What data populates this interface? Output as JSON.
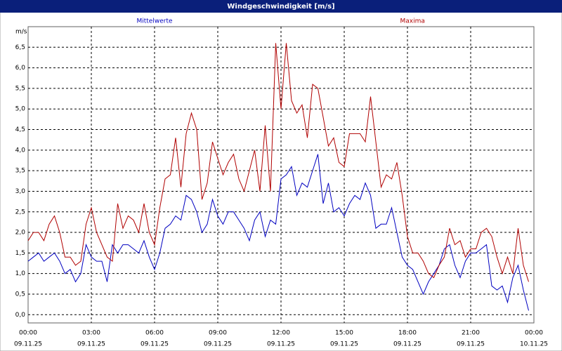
{
  "chart_data": {
    "type": "line",
    "title": "Windgeschwindigkeit [m/s]",
    "y_label": "m/s",
    "x": [
      0,
      0.25,
      0.5,
      0.75,
      1,
      1.25,
      1.5,
      1.75,
      2,
      2.25,
      2.5,
      2.75,
      3,
      3.25,
      3.5,
      3.75,
      4,
      4.25,
      4.5,
      4.75,
      5,
      5.25,
      5.5,
      5.75,
      6,
      6.25,
      6.5,
      6.75,
      7,
      7.25,
      7.5,
      7.75,
      8,
      8.25,
      8.5,
      8.75,
      9,
      9.25,
      9.5,
      9.75,
      10,
      10.25,
      10.5,
      10.75,
      11,
      11.25,
      11.5,
      11.75,
      12,
      12.25,
      12.5,
      12.75,
      13,
      13.25,
      13.5,
      13.75,
      14,
      14.25,
      14.5,
      14.75,
      15,
      15.25,
      15.5,
      15.75,
      16,
      16.25,
      16.5,
      16.75,
      17,
      17.25,
      17.5,
      17.75,
      18,
      18.25,
      18.5,
      18.75,
      19,
      19.25,
      19.5,
      19.75,
      20,
      20.25,
      20.5,
      20.75,
      21,
      21.25,
      21.5,
      21.75,
      22,
      22.25,
      22.5,
      22.75,
      23,
      23.25,
      23.5,
      23.75
    ],
    "series": [
      {
        "name": "Mittelwerte",
        "color": "#0000c0",
        "values": [
          1.3,
          1.4,
          1.5,
          1.3,
          1.4,
          1.5,
          1.3,
          1.0,
          1.1,
          0.8,
          1.0,
          1.7,
          1.4,
          1.3,
          1.3,
          0.8,
          1.7,
          1.5,
          1.7,
          1.7,
          1.6,
          1.5,
          1.8,
          1.4,
          1.1,
          1.5,
          2.1,
          2.2,
          2.4,
          2.3,
          2.9,
          2.8,
          2.5,
          2.0,
          2.2,
          2.8,
          2.4,
          2.2,
          2.5,
          2.5,
          2.3,
          2.1,
          1.8,
          2.3,
          2.5,
          1.9,
          2.3,
          2.2,
          3.3,
          3.4,
          3.6,
          2.9,
          3.2,
          3.1,
          3.5,
          3.9,
          2.7,
          3.2,
          2.5,
          2.6,
          2.4,
          2.7,
          2.9,
          2.8,
          3.2,
          2.9,
          2.1,
          2.2,
          2.2,
          2.6,
          2.0,
          1.4,
          1.2,
          1.1,
          0.8,
          0.5,
          0.8,
          1.0,
          1.2,
          1.6,
          1.7,
          1.2,
          0.9,
          1.3,
          1.5,
          1.5,
          1.6,
          1.7,
          0.7,
          0.6,
          0.7,
          0.3,
          0.9,
          1.2,
          0.6,
          0.1
        ]
      },
      {
        "name": "Maxima",
        "color": "#b00000",
        "values": [
          1.8,
          2.0,
          2.0,
          1.8,
          2.2,
          2.4,
          2.0,
          1.4,
          1.4,
          1.2,
          1.3,
          2.2,
          2.6,
          2.0,
          1.7,
          1.4,
          1.3,
          2.7,
          2.1,
          2.4,
          2.3,
          2.0,
          2.7,
          2.0,
          1.7,
          2.6,
          3.3,
          3.4,
          4.3,
          3.1,
          4.4,
          4.9,
          4.5,
          2.8,
          3.2,
          4.2,
          3.8,
          3.4,
          3.7,
          3.9,
          3.3,
          3.0,
          3.5,
          4.0,
          3.0,
          4.6,
          3.0,
          6.6,
          5.0,
          6.6,
          5.2,
          4.9,
          5.1,
          4.3,
          5.6,
          5.5,
          4.8,
          4.1,
          4.3,
          3.7,
          3.6,
          4.4,
          4.4,
          4.4,
          4.2,
          5.3,
          4.2,
          3.1,
          3.4,
          3.3,
          3.7,
          2.9,
          1.9,
          1.5,
          1.5,
          1.3,
          1.0,
          0.9,
          1.2,
          1.4,
          2.1,
          1.7,
          1.8,
          1.4,
          1.6,
          1.6,
          2.0,
          2.1,
          1.9,
          1.4,
          1.0,
          1.4,
          1.0,
          2.1,
          1.2,
          0.8
        ]
      }
    ],
    "xlim": [
      0,
      24
    ],
    "xticks": [
      {
        "value": 0,
        "label": "00:00"
      },
      {
        "value": 3,
        "label": "03:00"
      },
      {
        "value": 6,
        "label": "06:00"
      },
      {
        "value": 9,
        "label": "09:00"
      },
      {
        "value": 12,
        "label": "12:00"
      },
      {
        "value": 15,
        "label": "15:00"
      },
      {
        "value": 18,
        "label": "18:00"
      },
      {
        "value": 21,
        "label": "21:00"
      },
      {
        "value": 24,
        "label": "00:00"
      }
    ],
    "xtick_dates": [
      "09.11.25",
      "09.11.25",
      "09.11.25",
      "09.11.25",
      "09.11.25",
      "09.11.25",
      "09.11.25",
      "09.11.25",
      "10.11.25"
    ],
    "ylim": [
      -0.2,
      7.0
    ],
    "yticks": [
      {
        "value": 0,
        "label": "0,0"
      },
      {
        "value": 0.5,
        "label": "0,5"
      },
      {
        "value": 1,
        "label": "1,0"
      },
      {
        "value": 1.5,
        "label": "1,5"
      },
      {
        "value": 2,
        "label": "2,0"
      },
      {
        "value": 2.5,
        "label": "2,5"
      },
      {
        "value": 3,
        "label": "3,0"
      },
      {
        "value": 3.5,
        "label": "3,5"
      },
      {
        "value": 4,
        "label": "4,0"
      },
      {
        "value": 4.5,
        "label": "4,5"
      },
      {
        "value": 5,
        "label": "5,0"
      },
      {
        "value": 5.5,
        "label": "5,5"
      },
      {
        "value": 6,
        "label": "6,0"
      },
      {
        "value": 6.5,
        "label": "6,5"
      }
    ],
    "grid": true
  }
}
